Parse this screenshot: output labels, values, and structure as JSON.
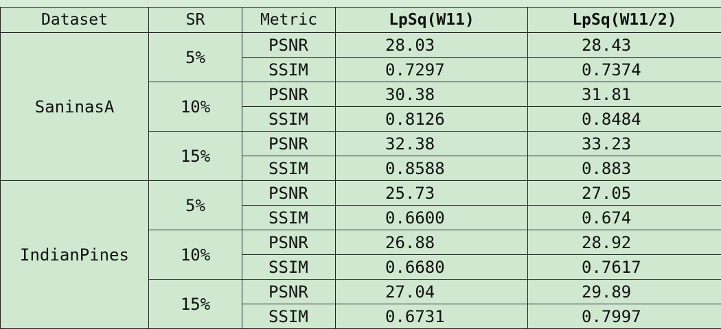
{
  "headers": {
    "dataset": "Dataset",
    "sr": "SR",
    "metric": "Metric",
    "model_a": "LpSq(W11)",
    "model_b": "LpSq(W11/2)"
  },
  "datasets": [
    {
      "name": "SaninasA",
      "groups": [
        {
          "sr": "5%",
          "rows": [
            {
              "metric": "PSNR",
              "a": "28.03",
              "b": "28.43"
            },
            {
              "metric": "SSIM",
              "a": "0.7297",
              "b": "0.7374"
            }
          ]
        },
        {
          "sr": "10%",
          "rows": [
            {
              "metric": "PSNR",
              "a": "30.38",
              "b": "31.81"
            },
            {
              "metric": "SSIM",
              "a": "0.8126",
              "b": "0.8484"
            }
          ]
        },
        {
          "sr": "15%",
          "rows": [
            {
              "metric": "PSNR",
              "a": "32.38",
              "b": "33.23"
            },
            {
              "metric": "SSIM",
              "a": "0.8588",
              "b": "0.883"
            }
          ]
        }
      ]
    },
    {
      "name": "IndianPines",
      "groups": [
        {
          "sr": "5%",
          "rows": [
            {
              "metric": "PSNR",
              "a": "25.73",
              "b": "27.05"
            },
            {
              "metric": "SSIM",
              "a": "0.6600",
              "b": "0.674"
            }
          ]
        },
        {
          "sr": "10%",
          "rows": [
            {
              "metric": "PSNR",
              "a": "26.88",
              "b": "28.92"
            },
            {
              "metric": "SSIM",
              "a": "0.6680",
              "b": "0.7617"
            }
          ]
        },
        {
          "sr": "15%",
          "rows": [
            {
              "metric": "PSNR",
              "a": "27.04",
              "b": "29.89"
            },
            {
              "metric": "SSIM",
              "a": "0.6731",
              "b": "0.7997"
            }
          ]
        }
      ]
    }
  ]
}
